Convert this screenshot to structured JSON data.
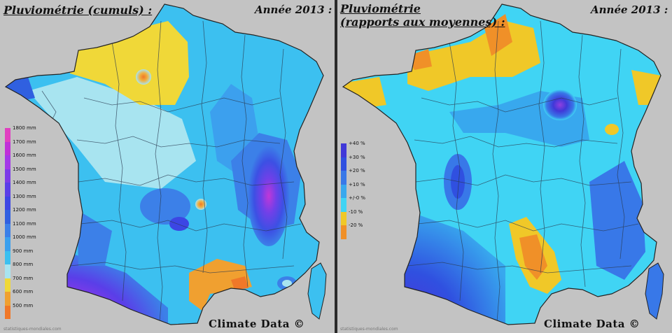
{
  "left_map": {
    "title_line1": "Pluviométrie (cumuls) :",
    "year": "Année 2013 :",
    "credit": "Climate Data ©",
    "source": "statistiques-mondiales.com",
    "legend_items": [
      {
        "label": "1800 mm",
        "color": "#e040c0"
      },
      {
        "label": "1700 mm",
        "color": "#c030d8"
      },
      {
        "label": "1600 mm",
        "color": "#a438e8"
      },
      {
        "label": "1500 mm",
        "color": "#7c3ce8"
      },
      {
        "label": "1400 mm",
        "color": "#5a3ee8"
      },
      {
        "label": "1300 mm",
        "color": "#3c46e4"
      },
      {
        "label": "1200 mm",
        "color": "#3060e0"
      },
      {
        "label": "1100 mm",
        "color": "#3c80e8"
      },
      {
        "label": "1000 mm",
        "color": "#3ca0ee"
      },
      {
        "label": "900 mm",
        "color": "#3cc0f0"
      },
      {
        "label": "800 mm",
        "color": "#a8e4f0"
      },
      {
        "label": "700 mm",
        "color": "#f0d838"
      },
      {
        "label": "600 mm",
        "color": "#f0a030"
      },
      {
        "label": "500 mm",
        "color": "#f07828"
      }
    ]
  },
  "right_map": {
    "title_line1": "Pluviométrie",
    "title_line2": "(rapports aux moyennes) :",
    "year": "Année 2013 :",
    "credit": "Climate Data ©",
    "source": "statistiques-mondiales.com",
    "legend_items": [
      {
        "label": "+40 %",
        "color": "#4038d8"
      },
      {
        "label": "+30 %",
        "color": "#3050e0"
      },
      {
        "label": "+20 %",
        "color": "#3878e8"
      },
      {
        "label": "+10 %",
        "color": "#38a8ee"
      },
      {
        "label": "+/-0 %",
        "color": "#40d4f4"
      },
      {
        "label": "-10 %",
        "color": "#f0c828"
      },
      {
        "label": "-20 %",
        "color": "#f09028"
      }
    ]
  },
  "colors": {
    "background": "#c3c3c3",
    "divider": "#2a2a2a",
    "border_lines": "#2a3a50"
  }
}
